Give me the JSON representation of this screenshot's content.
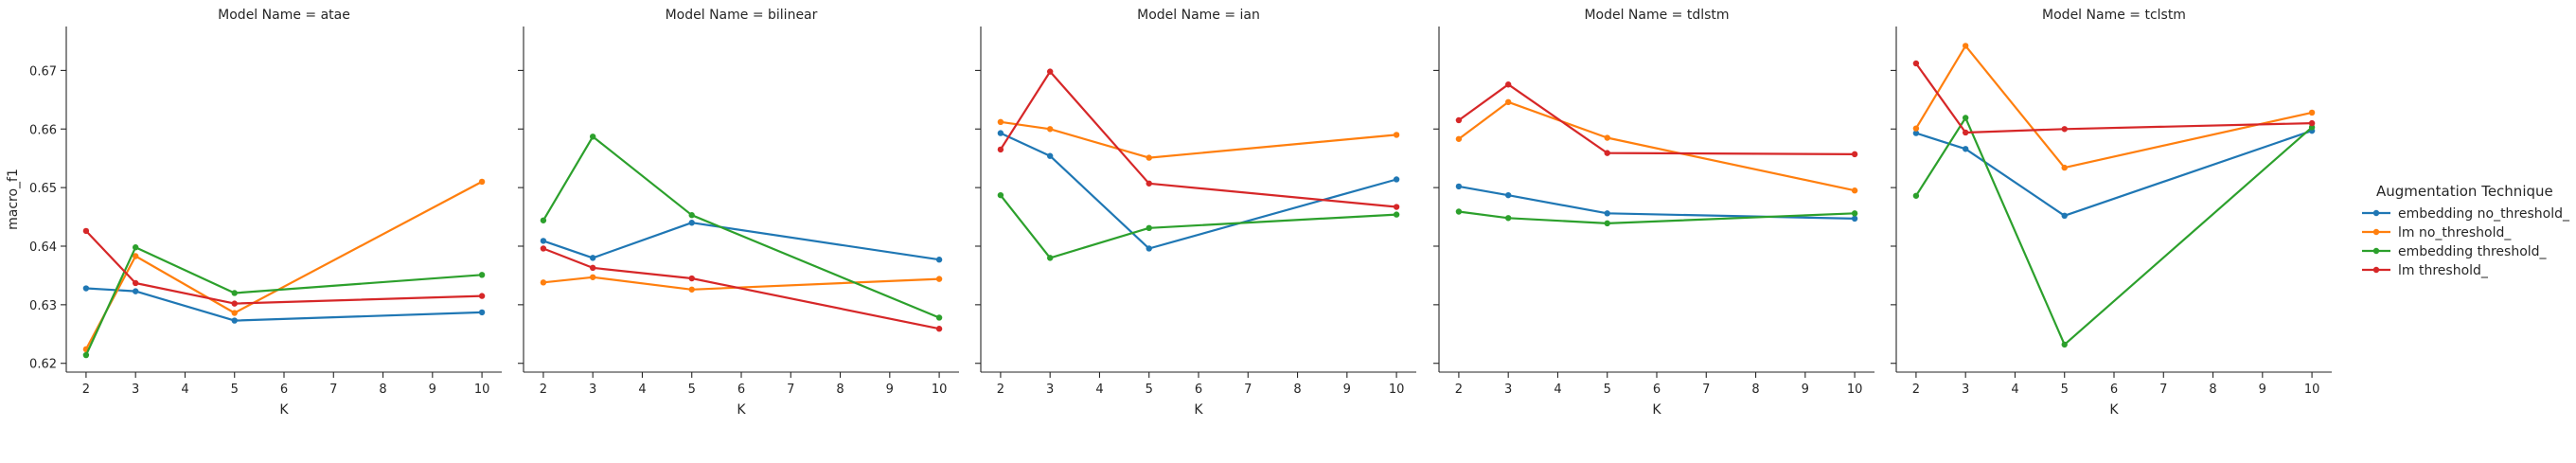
{
  "chart_data": {
    "type": "line",
    "ylabel": "macro_f1",
    "xlabel": "K",
    "x": [
      2,
      3,
      5,
      10
    ],
    "xticks": [
      2,
      3,
      4,
      5,
      6,
      7,
      8,
      9,
      10
    ],
    "xlim": [
      1.6,
      10.4
    ],
    "ylim": [
      0.6185,
      0.6775
    ],
    "yticks": [
      0.62,
      0.63,
      0.64,
      0.65,
      0.66,
      0.67
    ],
    "yticklabels": [
      "0.62",
      "0.63",
      "0.64",
      "0.65",
      "0.66",
      "0.67"
    ],
    "legend": {
      "title": "Augmentation Technique",
      "position": "right",
      "entries": [
        {
          "label": "embedding no_threshold_",
          "color": "#1f77b4"
        },
        {
          "label": "lm no_threshold_",
          "color": "#ff7f0e"
        },
        {
          "label": "embedding threshold_",
          "color": "#2ca02c"
        },
        {
          "label": "lm threshold_",
          "color": "#d62728"
        }
      ]
    },
    "panels": [
      {
        "title": "Model Name = atae",
        "series": [
          {
            "name": "embedding no_threshold_",
            "color": "#1f77b4",
            "values": [
              0.6328,
              0.6323,
              0.6273,
              0.6287
            ]
          },
          {
            "name": "lm no_threshold_",
            "color": "#ff7f0e",
            "values": [
              0.6224,
              0.6383,
              0.6286,
              0.651
            ]
          },
          {
            "name": "embedding threshold_",
            "color": "#2ca02c",
            "values": [
              0.6214,
              0.6398,
              0.632,
              0.6351
            ]
          },
          {
            "name": "lm threshold_",
            "color": "#d62728",
            "values": [
              0.6426,
              0.6337,
              0.6302,
              0.6315
            ]
          }
        ]
      },
      {
        "title": "Model Name = bilinear",
        "series": [
          {
            "name": "embedding no_threshold_",
            "color": "#1f77b4",
            "values": [
              0.6409,
              0.638,
              0.644,
              0.6377
            ]
          },
          {
            "name": "lm no_threshold_",
            "color": "#ff7f0e",
            "values": [
              0.6338,
              0.6347,
              0.6326,
              0.6344
            ]
          },
          {
            "name": "embedding threshold_",
            "color": "#2ca02c",
            "values": [
              0.6444,
              0.6587,
              0.6453,
              0.6278
            ]
          },
          {
            "name": "lm threshold_",
            "color": "#d62728",
            "values": [
              0.6396,
              0.6363,
              0.6345,
              0.6259
            ]
          }
        ]
      },
      {
        "title": "Model Name = ian",
        "series": [
          {
            "name": "embedding no_threshold_",
            "color": "#1f77b4",
            "values": [
              0.6593,
              0.6554,
              0.6396,
              0.6514
            ]
          },
          {
            "name": "lm no_threshold_",
            "color": "#ff7f0e",
            "values": [
              0.6612,
              0.66,
              0.6551,
              0.659
            ]
          },
          {
            "name": "embedding threshold_",
            "color": "#2ca02c",
            "values": [
              0.6487,
              0.638,
              0.6431,
              0.6454
            ]
          },
          {
            "name": "lm threshold_",
            "color": "#d62728",
            "values": [
              0.6565,
              0.6698,
              0.6507,
              0.6467
            ]
          }
        ]
      },
      {
        "title": "Model Name = tdlstm",
        "series": [
          {
            "name": "embedding no_threshold_",
            "color": "#1f77b4",
            "values": [
              0.6502,
              0.6487,
              0.6456,
              0.6447
            ]
          },
          {
            "name": "lm no_threshold_",
            "color": "#ff7f0e",
            "values": [
              0.6583,
              0.6646,
              0.6585,
              0.6495
            ]
          },
          {
            "name": "embedding threshold_",
            "color": "#2ca02c",
            "values": [
              0.6459,
              0.6448,
              0.6439,
              0.6456
            ]
          },
          {
            "name": "lm threshold_",
            "color": "#d62728",
            "values": [
              0.6615,
              0.6676,
              0.6559,
              0.6557
            ]
          }
        ]
      },
      {
        "title": "Model Name = tclstm",
        "series": [
          {
            "name": "embedding no_threshold_",
            "color": "#1f77b4",
            "values": [
              0.6593,
              0.6566,
              0.6452,
              0.6597
            ]
          },
          {
            "name": "lm no_threshold_",
            "color": "#ff7f0e",
            "values": [
              0.6601,
              0.6742,
              0.6534,
              0.6628
            ]
          },
          {
            "name": "embedding threshold_",
            "color": "#2ca02c",
            "values": [
              0.6486,
              0.6619,
              0.6232,
              0.6603
            ]
          },
          {
            "name": "lm threshold_",
            "color": "#d62728",
            "values": [
              0.6712,
              0.6594,
              0.66,
              0.661
            ]
          }
        ]
      }
    ]
  }
}
